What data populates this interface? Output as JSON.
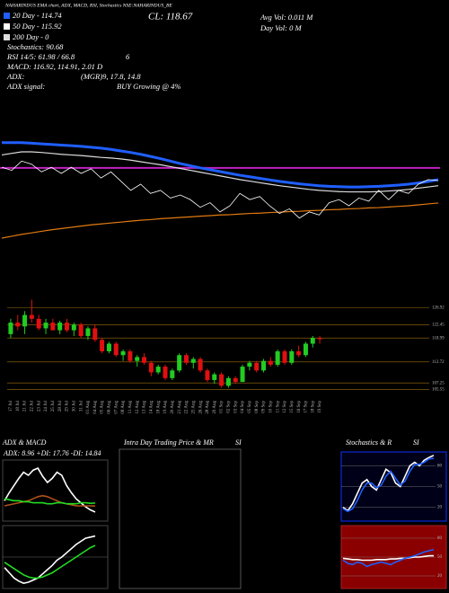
{
  "info": {
    "header": "NAHARINDUS EMA chart, ADX, MACD, RSI, Stochastics NSE:NAHARINDUS_BE",
    "ma20": "20 Day - 114.74",
    "ma50": "50 Day - 115.92",
    "ma200": "200 Day - 0",
    "stoch": "Stochastics: 90.68",
    "rsi": "RSI 14/5: 61.98 / 66.8",
    "rsi_extra": "6",
    "macd": "MACD: 116.92, 114.91, 2.01 D",
    "adx": "ADX:",
    "adx_values": "(MGR)9, 17.8, 14.8",
    "adx_signal": "ADX  signal:",
    "adx_signal_value": "BUY Growing @ 4%",
    "close": "CL: 118.67",
    "avg_vol": "Avg Vol: 0.011  M",
    "day_vol": "Day Vol: 0   M"
  },
  "chart_data": [
    {
      "type": "candlestick",
      "categories": [
        "17 Jul",
        "18 Jul",
        "21 Jul",
        "22 Jul",
        "23 Jul",
        "24 Jul",
        "25 Jul",
        "28 Jul",
        "29 Jul",
        "30 Jul",
        "31 Jul",
        "01 Aug",
        "04 Aug",
        "05 Aug",
        "06 Aug",
        "07 Aug",
        "08 Aug",
        "11 Aug",
        "12 Aug",
        "13 Aug",
        "14 Aug",
        "18 Aug",
        "19 Aug",
        "20 Aug",
        "21 Aug",
        "22 Aug",
        "25 Aug",
        "26 Aug",
        "28 Aug",
        "29 Aug",
        "01 Sep",
        "02 Sep",
        "03 Sep",
        "04 Sep",
        "05 Sep",
        "08 Sep",
        "09 Sep",
        "10 Sep",
        "11 Sep",
        "12 Sep",
        "15 Sep",
        "16 Sep",
        "17 Sep",
        "18 Sep",
        "19 Sep"
      ],
      "ohlc": [
        [
          120,
          124,
          119,
          123
        ],
        [
          123,
          125,
          121,
          122
        ],
        [
          122,
          126,
          120,
          125
        ],
        [
          125,
          129,
          123,
          124
        ],
        [
          124,
          125,
          121,
          121.5
        ],
        [
          121.5,
          124,
          120,
          123
        ],
        [
          123,
          124,
          121,
          121
        ],
        [
          121,
          123.5,
          120,
          123
        ],
        [
          123,
          124,
          120.5,
          121
        ],
        [
          121,
          123,
          119.5,
          122.5
        ],
        [
          122.5,
          123,
          119,
          119.5
        ],
        [
          119.5,
          122,
          118.5,
          121.5
        ],
        [
          121.5,
          122.5,
          118,
          118.5
        ],
        [
          118.5,
          119,
          115,
          115.5
        ],
        [
          115.5,
          118,
          115,
          117.5
        ],
        [
          117.5,
          118,
          114,
          114.5
        ],
        [
          114.5,
          116,
          113,
          115.5
        ],
        [
          115.5,
          116,
          112.5,
          113
        ],
        [
          113,
          114.5,
          111.5,
          114
        ],
        [
          114,
          115,
          112,
          112.5
        ],
        [
          112.5,
          113,
          109,
          110
        ],
        [
          110,
          112,
          109.5,
          111.5
        ],
        [
          111.5,
          112,
          108,
          108.5
        ],
        [
          108.5,
          111,
          108,
          110.5
        ],
        [
          110.5,
          115,
          110,
          114.5
        ],
        [
          114.5,
          115,
          112,
          112.5
        ],
        [
          112.5,
          114,
          111,
          113.5
        ],
        [
          113.5,
          114,
          110,
          110.5
        ],
        [
          110.5,
          111,
          107.5,
          108
        ],
        [
          108,
          110,
          107,
          109.5
        ],
        [
          109.5,
          110,
          106,
          106.5
        ],
        [
          106.5,
          109,
          106,
          108.5
        ],
        [
          108.5,
          109,
          107,
          107.5
        ],
        [
          107.5,
          112,
          107.5,
          111.5
        ],
        [
          111.5,
          113,
          110.5,
          112.5
        ],
        [
          112.5,
          113,
          110,
          110.5
        ],
        [
          110.5,
          113.5,
          110,
          113
        ],
        [
          113,
          114,
          111.5,
          112
        ],
        [
          112,
          116,
          111.5,
          115.5
        ],
        [
          115.5,
          116,
          112,
          112.5
        ],
        [
          112.5,
          116,
          112,
          115.5
        ],
        [
          115.5,
          117,
          114,
          114.5
        ],
        [
          114.5,
          118,
          114,
          117.5
        ],
        [
          117.5,
          119.5,
          116.5,
          119
        ],
        [
          119,
          119.5,
          117.5,
          118.67
        ]
      ],
      "up_color": "#22cc22",
      "down_color": "#e01010",
      "ylim": [
        104,
        131
      ],
      "yticks": [
        126.92,
        122.45,
        118.99,
        112.72,
        107.25,
        105.55
      ],
      "overlay": {
        "ylim": [
          100,
          135
        ],
        "close_color": "#ffffff",
        "hline": {
          "value": 122.8,
          "color": "#c020c0"
        },
        "series": [
          {
            "color": "#1f5fff",
            "values": [
              131,
              131,
              131,
              130.8,
              130.6,
              130.4,
              130.2,
              130,
              129.8,
              129.5,
              129.2,
              128.8,
              128.3,
              127.8,
              127.2,
              126.5,
              125.8,
              125,
              124.2,
              123.5,
              122.8,
              122.2,
              121.6,
              121,
              120.4,
              119.9,
              119.4,
              118.9,
              118.4,
              118,
              117.6,
              117.3,
              117,
              116.8,
              116.7,
              116.6,
              116.6,
              116.7,
              116.8,
              117,
              117.2,
              117.5,
              117.9,
              118.4,
              119
            ]
          },
          {
            "color": "#dddddd",
            "values": [
              127,
              127.5,
              128,
              128,
              127.8,
              127.5,
              127.2,
              127,
              126.8,
              126.5,
              126.2,
              126,
              125.7,
              125.3,
              124.8,
              124.3,
              123.8,
              123.2,
              122.6,
              122,
              121.4,
              120.8,
              120.2,
              119.6,
              119,
              118.5,
              118,
              117.5,
              117,
              116.6,
              116.2,
              115.8,
              115.5,
              115.3,
              115.1,
              115,
              115,
              115,
              115.1,
              115.3,
              115.5,
              115.8,
              116.2,
              116.6,
              117
            ]
          },
          {
            "color": "#e07a10",
            "values": [
              100,
              100.6,
              101.2,
              101.7,
              102.2,
              102.7,
              103.1,
              103.5,
              103.9,
              104.3,
              104.6,
              104.9,
              105.2,
              105.5,
              105.8,
              106,
              106.3,
              106.5,
              106.7,
              106.9,
              107.1,
              107.3,
              107.5,
              107.6,
              107.8,
              108,
              108.1,
              108.3,
              108.4,
              108.6,
              108.7,
              108.9,
              109,
              109.2,
              109.3,
              109.5,
              109.6,
              109.8,
              109.9,
              110.1,
              110.3,
              110.5,
              110.8,
              111.1,
              111.4
            ]
          }
        ]
      }
    },
    {
      "type": "line",
      "title": "ADX  & MACD",
      "subtitle": "ADX: 8.96  +DI: 17.76  -DI: 14.84",
      "background": "#000000",
      "border": "#444444",
      "ylim": [
        0,
        60
      ],
      "series": [
        {
          "color": "#ffffff",
          "values": [
            20,
            28,
            35,
            42,
            48,
            45,
            50,
            52,
            44,
            38,
            42,
            48,
            45,
            35,
            28,
            22,
            18,
            14,
            11,
            8.96
          ]
        },
        {
          "color": "#b0501a",
          "values": [
            15,
            16,
            17,
            18,
            19,
            20,
            22,
            24,
            25,
            24,
            22,
            20,
            18,
            17,
            16,
            15,
            15,
            15,
            15,
            14.84
          ]
        },
        {
          "color": "#22dd22",
          "values": [
            22,
            21,
            20,
            20,
            19,
            19,
            18,
            18,
            18,
            17,
            17,
            18,
            18,
            17,
            17,
            17,
            18,
            18,
            17.5,
            17.76
          ]
        }
      ]
    },
    {
      "type": "line",
      "background": "#000000",
      "border": "#444444",
      "ylim": [
        -3,
        3
      ],
      "series": [
        {
          "color": "#ffffff",
          "values": [
            -1,
            -1.5,
            -2,
            -2.3,
            -2.5,
            -2.4,
            -2.2,
            -2,
            -1.6,
            -1.2,
            -0.8,
            -0.3,
            0,
            0.4,
            0.8,
            1.2,
            1.5,
            1.8,
            1.9,
            2.01
          ]
        },
        {
          "color": "#22dd22",
          "values": [
            -0.5,
            -0.8,
            -1.1,
            -1.4,
            -1.7,
            -1.9,
            -2,
            -2,
            -1.9,
            -1.7,
            -1.5,
            -1.2,
            -0.9,
            -0.6,
            -0.3,
            0,
            0.3,
            0.6,
            0.9,
            1.1
          ]
        }
      ]
    },
    {
      "type": "blank",
      "title": "Intra Day Trading Price & MR",
      "title_end": "SI",
      "background": "#000000",
      "border": "#555555"
    },
    {
      "type": "line",
      "title": "Stochastics & R",
      "title_end": "SI",
      "background": "#000018",
      "border": "#1030ff",
      "ylim": [
        0,
        100
      ],
      "yticks": [
        80,
        50,
        20
      ],
      "series": [
        {
          "color": "#ffffff",
          "values": [
            20,
            15,
            25,
            40,
            55,
            60,
            50,
            45,
            60,
            75,
            70,
            55,
            50,
            65,
            80,
            85,
            80,
            88,
            92,
            95
          ]
        },
        {
          "color": "#2060ff",
          "values": [
            18,
            14,
            18,
            30,
            45,
            55,
            55,
            48,
            52,
            65,
            72,
            62,
            52,
            58,
            72,
            82,
            82,
            85,
            90,
            90.68
          ]
        }
      ]
    },
    {
      "type": "line",
      "background": "#8a0000",
      "border": "#aa2020",
      "ylim": [
        0,
        100
      ],
      "yticks": [
        80,
        50,
        20
      ],
      "series": [
        {
          "color": "#ffffff",
          "values": [
            48,
            47,
            46,
            46,
            45,
            45,
            45,
            46,
            46,
            46,
            47,
            47,
            48,
            48,
            49,
            50,
            50,
            51,
            52,
            52
          ]
        },
        {
          "color": "#2060ff",
          "values": [
            45,
            40,
            38,
            42,
            40,
            35,
            38,
            40,
            42,
            40,
            38,
            42,
            45,
            48,
            50,
            52,
            55,
            58,
            60,
            61.98
          ]
        }
      ]
    }
  ]
}
